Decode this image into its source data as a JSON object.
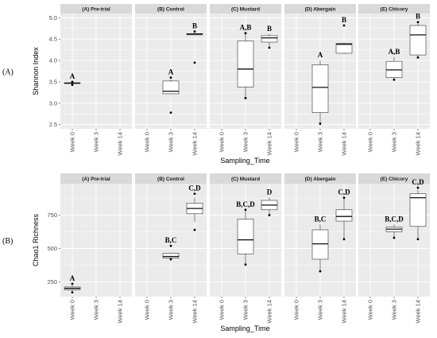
{
  "chart_data": [
    {
      "type": "box",
      "row_label": "(A)",
      "ylabel": "Shannon Index",
      "xlabel": "Sampling_Time",
      "ylim": [
        2.4,
        5.1
      ],
      "yticks": [
        "2.5",
        "3.0",
        "3.5",
        "4.0",
        "4.5",
        "5.0"
      ],
      "categories": [
        "Week 0",
        "Week 3",
        "Week 14"
      ],
      "facets": [
        {
          "name": "(A) Pre-trial",
          "boxes": [
            {
              "x": "Week 0",
              "min": 3.44,
              "q1": 3.46,
              "median": 3.47,
              "q3": 3.48,
              "max": 3.5,
              "points": [
                3.43,
                3.5
              ],
              "label": "A"
            }
          ]
        },
        {
          "name": "(B) Control",
          "boxes": [
            {
              "x": "Week 3",
              "min": 3.22,
              "q1": 3.22,
              "median": 3.28,
              "q3": 3.52,
              "max": 3.56,
              "points": [
                2.78,
                3.6
              ],
              "label": "A"
            },
            {
              "x": "Week 14",
              "min": 4.6,
              "q1": 4.6,
              "median": 4.62,
              "q3": 4.63,
              "max": 4.65,
              "points": [
                3.95,
                4.68
              ],
              "label": "B"
            }
          ]
        },
        {
          "name": "(C) Mustard",
          "boxes": [
            {
              "x": "Week 3",
              "min": 3.12,
              "q1": 3.38,
              "median": 3.8,
              "q3": 4.46,
              "max": 4.64,
              "points": [
                3.12,
                4.64
              ],
              "label": "A,B"
            },
            {
              "x": "Week 14",
              "min": 4.3,
              "q1": 4.43,
              "median": 4.53,
              "q3": 4.58,
              "max": 4.62,
              "points": [
                4.3
              ],
              "label": "B"
            }
          ]
        },
        {
          "name": "(D) Abergain",
          "boxes": [
            {
              "x": "Week 3",
              "min": 2.52,
              "q1": 2.78,
              "median": 3.37,
              "q3": 3.9,
              "max": 4.0,
              "points": [
                2.52
              ],
              "label": "A"
            },
            {
              "x": "Week 14",
              "min": 4.15,
              "q1": 4.17,
              "median": 4.38,
              "q3": 4.4,
              "max": 4.42,
              "points": [
                4.82
              ],
              "label": "B"
            }
          ]
        },
        {
          "name": "(E) Chicory",
          "boxes": [
            {
              "x": "Week 3",
              "min": 3.55,
              "q1": 3.6,
              "median": 3.78,
              "q3": 3.98,
              "max": 4.08,
              "points": [
                3.55
              ],
              "label": "A,B"
            },
            {
              "x": "Week 14",
              "min": 4.07,
              "q1": 4.13,
              "median": 4.6,
              "q3": 4.82,
              "max": 4.9,
              "points": [
                4.07,
                4.9
              ],
              "label": "B"
            }
          ]
        }
      ]
    },
    {
      "type": "box",
      "row_label": "(B)",
      "ylabel": "Chao1 Richness",
      "xlabel": "Sampling_Time",
      "ylim": [
        140,
        985
      ],
      "yticks": [
        "250",
        "500",
        "750"
      ],
      "categories": [
        "Week 0",
        "Week 3",
        "Week 14"
      ],
      "facets": [
        {
          "name": "(A) Pre-trial",
          "boxes": [
            {
              "x": "Week 0",
              "min": 180,
              "q1": 192,
              "median": 202,
              "q3": 212,
              "max": 225,
              "points": [
                172,
                236
              ],
              "label": "A"
            }
          ]
        },
        {
          "name": "(B) Control",
          "boxes": [
            {
              "x": "Week 3",
              "min": 420,
              "q1": 428,
              "median": 440,
              "q3": 465,
              "max": 472,
              "points": [
                420,
                520
              ],
              "label": "B,C"
            },
            {
              "x": "Week 14",
              "min": 700,
              "q1": 760,
              "median": 800,
              "q3": 840,
              "max": 880,
              "points": [
                640,
                910
              ],
              "label": "C,D"
            }
          ]
        },
        {
          "name": "(C) Mustard",
          "boxes": [
            {
              "x": "Week 3",
              "min": 380,
              "q1": 460,
              "median": 565,
              "q3": 720,
              "max": 790,
              "points": [
                380,
                790
              ],
              "label": "B,C,D"
            },
            {
              "x": "Week 14",
              "min": 750,
              "q1": 790,
              "median": 825,
              "q3": 860,
              "max": 880,
              "points": [
                750
              ],
              "label": "D"
            }
          ]
        },
        {
          "name": "(D) Abergain",
          "boxes": [
            {
              "x": "Week 3",
              "min": 330,
              "q1": 420,
              "median": 535,
              "q3": 640,
              "max": 680,
              "points": [
                330
              ],
              "label": "B,C"
            },
            {
              "x": "Week 14",
              "min": 570,
              "q1": 705,
              "median": 740,
              "q3": 790,
              "max": 880,
              "points": [
                570,
                880
              ],
              "label": "C,D"
            }
          ]
        },
        {
          "name": "(E) Chicory",
          "boxes": [
            {
              "x": "Week 3",
              "min": 580,
              "q1": 625,
              "median": 645,
              "q3": 660,
              "max": 680,
              "points": [
                580
              ],
              "label": "B,C,D"
            },
            {
              "x": "Week 14",
              "min": 570,
              "q1": 665,
              "median": 880,
              "q3": 910,
              "max": 940,
              "points": [
                570,
                955
              ],
              "label": "C,D"
            }
          ]
        }
      ]
    }
  ]
}
